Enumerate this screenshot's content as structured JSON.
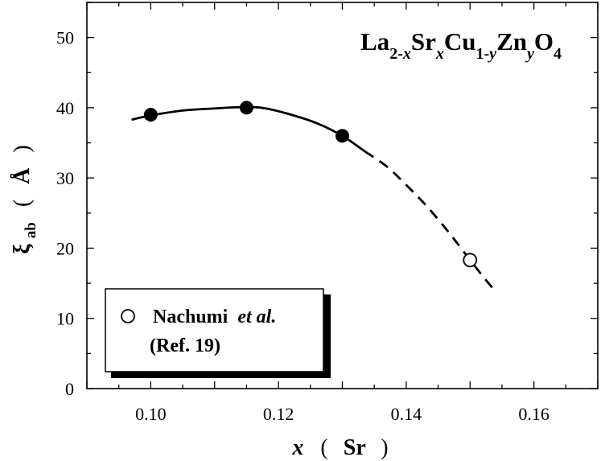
{
  "chart_data": {
    "type": "scatter",
    "title": {
      "parts": [
        {
          "text": "La",
          "style": "normal"
        },
        {
          "text": "2-",
          "style": "sub"
        },
        {
          "text": "x",
          "style": "sub-italic"
        },
        {
          "text": "Sr",
          "style": "normal"
        },
        {
          "text": "x",
          "style": "sub-italic"
        },
        {
          "text": "Cu",
          "style": "normal"
        },
        {
          "text": "1-",
          "style": "sub"
        },
        {
          "text": "y",
          "style": "sub-italic"
        },
        {
          "text": "Zn",
          "style": "normal"
        },
        {
          "text": "y",
          "style": "sub-italic"
        },
        {
          "text": "O",
          "style": "normal"
        },
        {
          "text": "4",
          "style": "sub"
        }
      ]
    },
    "xlabel": {
      "var": "x",
      "open": "(",
      "unit": "Sr",
      "close": ")"
    },
    "ylabel": {
      "var": "ξ",
      "sub": "ab",
      "open": "(",
      "unit": "Å",
      "close": ")"
    },
    "xlim": [
      0.09,
      0.17
    ],
    "ylim": [
      0,
      55
    ],
    "xticks": [
      0.1,
      0.12,
      0.14,
      0.16
    ],
    "xtick_labels": [
      "0.10",
      "0.12",
      "0.14",
      "0.16"
    ],
    "yticks": [
      0,
      10,
      20,
      30,
      40,
      50
    ],
    "ytick_labels": [
      "0",
      "10",
      "20",
      "30",
      "40",
      "50"
    ],
    "series": [
      {
        "marker": "filled-circle",
        "color": "#000000",
        "points": [
          {
            "x": 0.1,
            "y": 39.0,
            "yerr": 1.0
          },
          {
            "x": 0.115,
            "y": 40.0,
            "yerr": 0.8
          },
          {
            "x": 0.13,
            "y": 36.0,
            "yerr": 0.8
          }
        ]
      },
      {
        "name": "Nachumi et al.",
        "marker": "open-circle",
        "color": "#000000",
        "points": [
          {
            "x": 0.15,
            "y": 18.3
          }
        ]
      }
    ],
    "guide_curves": [
      {
        "style": "solid",
        "points": [
          [
            0.097,
            38.3
          ],
          [
            0.1,
            38.9
          ],
          [
            0.105,
            39.6
          ],
          [
            0.11,
            39.9
          ],
          [
            0.115,
            40.1
          ],
          [
            0.118,
            39.9
          ],
          [
            0.122,
            39.0
          ],
          [
            0.126,
            37.8
          ],
          [
            0.13,
            36.0
          ],
          [
            0.1335,
            33.8
          ]
        ]
      },
      {
        "style": "dashed",
        "points": [
          [
            0.1335,
            33.8
          ],
          [
            0.137,
            31.6
          ],
          [
            0.14,
            29.0
          ],
          [
            0.143,
            26.2
          ],
          [
            0.146,
            23.0
          ],
          [
            0.148,
            20.7
          ],
          [
            0.15,
            18.3
          ],
          [
            0.152,
            16.0
          ],
          [
            0.154,
            13.8
          ]
        ]
      }
    ],
    "legend": {
      "placement": "bottom-left",
      "marker": "open-circle",
      "name": "Nachumi",
      "name_italic": "et al.",
      "ref": "(Ref. 19)"
    },
    "grid": false
  }
}
